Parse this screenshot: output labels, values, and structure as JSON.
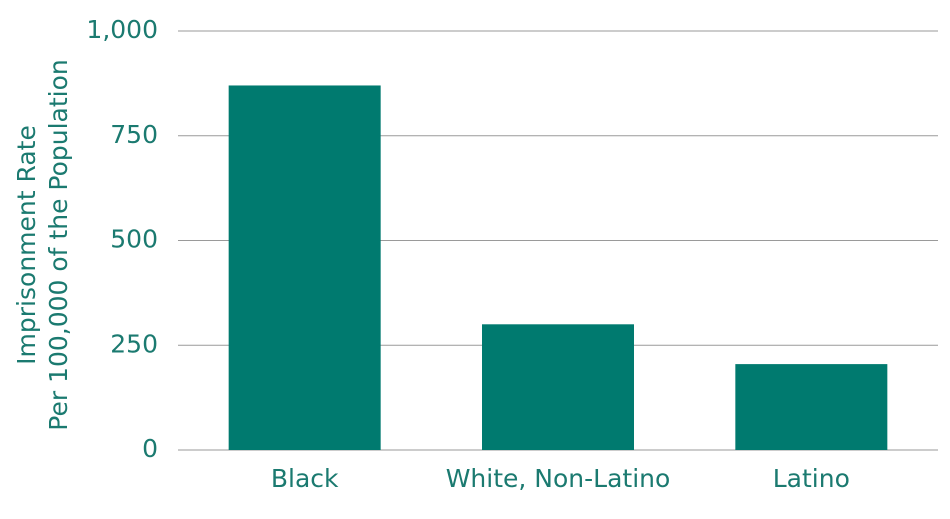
{
  "chart_data": {
    "type": "bar",
    "y_label": [
      "Imprisonment Rate",
      "Per 100,000 of the Population"
    ],
    "categories": [
      "Black",
      "White, Non-Latino",
      "Latino"
    ],
    "values": [
      870,
      300,
      205
    ],
    "color": "#007a6f",
    "ylim": [
      0,
      1000
    ],
    "yticks": [
      0,
      250,
      500,
      750,
      {
        "value": 1000,
        "label": "1,000"
      }
    ],
    "grid": true
  }
}
